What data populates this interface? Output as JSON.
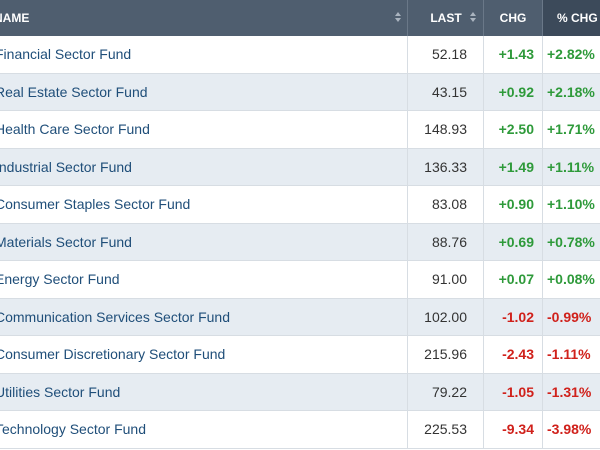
{
  "header": {
    "name_label": "NAME",
    "last_label": "LAST",
    "chg_label": "CHG",
    "pct_label": "% CHG"
  },
  "colors": {
    "header_bg": "#4f5e6f",
    "active_header_bg": "#3c4a5a",
    "positive": "#2e9a3a",
    "negative": "#d0211b",
    "link": "#1f4e79",
    "alt_row_bg": "#e6ecf2"
  },
  "rows": [
    {
      "name": "Financial Sector Fund",
      "last": "52.18",
      "chg": "+1.43",
      "pct": "+2.82%",
      "dir": "pos"
    },
    {
      "name": "Real Estate Sector Fund",
      "last": "43.15",
      "chg": "+0.92",
      "pct": "+2.18%",
      "dir": "pos"
    },
    {
      "name": "Health Care Sector Fund",
      "last": "148.93",
      "chg": "+2.50",
      "pct": "+1.71%",
      "dir": "pos"
    },
    {
      "name": "Industrial Sector Fund",
      "last": "136.33",
      "chg": "+1.49",
      "pct": "+1.11%",
      "dir": "pos"
    },
    {
      "name": "Consumer Staples Sector Fund",
      "last": "83.08",
      "chg": "+0.90",
      "pct": "+1.10%",
      "dir": "pos"
    },
    {
      "name": "Materials Sector Fund",
      "last": "88.76",
      "chg": "+0.69",
      "pct": "+0.78%",
      "dir": "pos"
    },
    {
      "name": "Energy Sector Fund",
      "last": "91.00",
      "chg": "+0.07",
      "pct": "+0.08%",
      "dir": "pos"
    },
    {
      "name": "Communication Services Sector Fund",
      "last": "102.00",
      "chg": "-1.02",
      "pct": "-0.99%",
      "dir": "neg"
    },
    {
      "name": "Consumer Discretionary Sector Fund",
      "last": "215.96",
      "chg": "-2.43",
      "pct": "-1.11%",
      "dir": "neg"
    },
    {
      "name": "Utilities Sector Fund",
      "last": "79.22",
      "chg": "-1.05",
      "pct": "-1.31%",
      "dir": "neg"
    },
    {
      "name": "Technology Sector Fund",
      "last": "225.53",
      "chg": "-9.34",
      "pct": "-3.98%",
      "dir": "neg"
    }
  ]
}
